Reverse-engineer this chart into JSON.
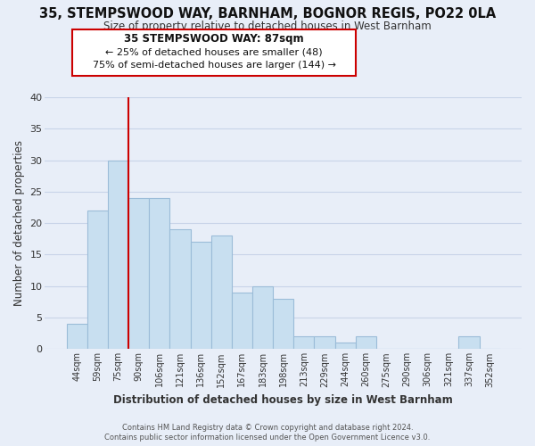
{
  "title_line1": "35, STEMPSWOOD WAY, BARNHAM, BOGNOR REGIS, PO22 0LA",
  "title_line2": "Size of property relative to detached houses in West Barnham",
  "xlabel": "Distribution of detached houses by size in West Barnham",
  "ylabel": "Number of detached properties",
  "bar_labels": [
    "44sqm",
    "59sqm",
    "75sqm",
    "90sqm",
    "106sqm",
    "121sqm",
    "136sqm",
    "152sqm",
    "167sqm",
    "183sqm",
    "198sqm",
    "213sqm",
    "229sqm",
    "244sqm",
    "260sqm",
    "275sqm",
    "290sqm",
    "306sqm",
    "321sqm",
    "337sqm",
    "352sqm"
  ],
  "bar_values": [
    4,
    22,
    30,
    24,
    24,
    19,
    17,
    18,
    9,
    10,
    8,
    2,
    2,
    1,
    2,
    0,
    0,
    0,
    0,
    2,
    0
  ],
  "bar_color": "#c8dff0",
  "bar_edge_color": "#9bbcd8",
  "grid_color": "#c8d4e8",
  "background_color": "#e8eef8",
  "vline_x_index": 3,
  "vline_color": "#cc0000",
  "annotation_title": "35 STEMPSWOOD WAY: 87sqm",
  "annotation_line1": "← 25% of detached houses are smaller (48)",
  "annotation_line2": "75% of semi-detached houses are larger (144) →",
  "annotation_box_color": "#ffffff",
  "annotation_box_edge": "#cc0000",
  "ylim": [
    0,
    40
  ],
  "yticks": [
    0,
    5,
    10,
    15,
    20,
    25,
    30,
    35,
    40
  ],
  "footer_line1": "Contains HM Land Registry data © Crown copyright and database right 2024.",
  "footer_line2": "Contains public sector information licensed under the Open Government Licence v3.0."
}
